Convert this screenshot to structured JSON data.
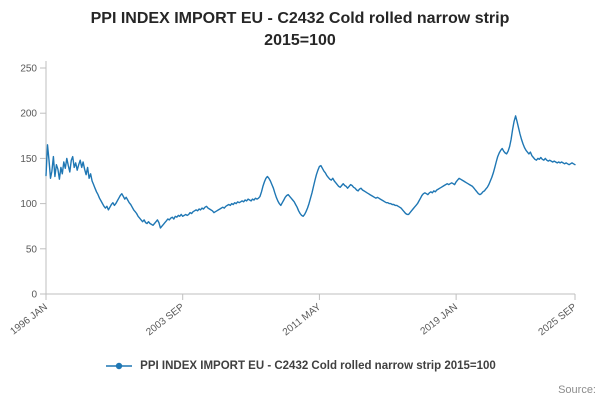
{
  "chart": {
    "title_line1": "PPI INDEX IMPORT EU - C2432 Cold rolled narrow strip",
    "title_line2": "2015=100",
    "legend": "PPI INDEX IMPORT EU - C2432 Cold rolled narrow strip 2015=100",
    "source": "Source:"
  },
  "colors": {
    "line": "#1f77b4",
    "axis": "#bfbfbf",
    "tick_text": "#595959"
  },
  "chart_data": {
    "type": "line",
    "title": "PPI INDEX IMPORT EU - C2432 Cold rolled narrow strip 2015=100",
    "xlabel": "",
    "ylabel": "",
    "grid": false,
    "legend_position": "bottom",
    "ylim": [
      0,
      250
    ],
    "y_ticks": [
      0,
      50,
      100,
      150,
      200,
      250
    ],
    "x_start": "1996 JAN",
    "x_end": "2025 SEP",
    "x_ticks": [
      {
        "label": "1996 JAN",
        "month": 0
      },
      {
        "label": "2003 SEP",
        "month": 92
      },
      {
        "label": "2011 MAY",
        "month": 184
      },
      {
        "label": "2019 JAN",
        "month": 276
      },
      {
        "label": "2025 SEP",
        "month": 356
      }
    ],
    "series": [
      {
        "name": "PPI INDEX IMPORT EU - C2432 Cold rolled narrow strip 2015=100",
        "frequency": "monthly",
        "values": [
          131,
          165,
          148,
          128,
          136,
          152,
          130,
          143,
          138,
          127,
          140,
          133,
          146,
          139,
          150,
          142,
          135,
          148,
          152,
          140,
          145,
          137,
          143,
          148,
          140,
          146,
          138,
          132,
          140,
          128,
          133,
          125,
          121,
          117,
          113,
          110,
          106,
          103,
          100,
          97,
          95,
          97,
          93,
          96,
          99,
          101,
          98,
          100,
          103,
          106,
          109,
          111,
          108,
          105,
          107,
          104,
          101,
          99,
          96,
          93,
          91,
          89,
          86,
          84,
          82,
          80,
          82,
          79,
          78,
          80,
          78,
          77,
          76,
          78,
          80,
          82,
          79,
          73,
          75,
          77,
          79,
          81,
          83,
          82,
          84,
          85,
          83,
          86,
          85,
          87,
          86,
          88,
          86,
          87,
          88,
          87,
          88,
          90,
          89,
          91,
          92,
          93,
          92,
          94,
          93,
          95,
          94,
          96,
          97,
          95,
          94,
          93,
          92,
          90,
          91,
          92,
          93,
          94,
          95,
          96,
          95,
          97,
          98,
          99,
          98,
          100,
          99,
          101,
          100,
          102,
          101,
          102,
          103,
          102,
          104,
          103,
          105,
          104,
          103,
          105,
          104,
          106,
          105,
          106,
          108,
          113,
          119,
          124,
          128,
          130,
          128,
          125,
          121,
          117,
          112,
          107,
          103,
          100,
          98,
          101,
          104,
          107,
          109,
          110,
          108,
          106,
          104,
          102,
          99,
          96,
          92,
          89,
          87,
          86,
          88,
          91,
          95,
          100,
          106,
          112,
          119,
          126,
          132,
          137,
          141,
          142,
          139,
          136,
          134,
          131,
          129,
          127,
          126,
          128,
          125,
          123,
          121,
          119,
          118,
          120,
          122,
          120,
          119,
          117,
          119,
          121,
          120,
          118,
          117,
          115,
          114,
          116,
          117,
          115,
          114,
          113,
          112,
          111,
          110,
          109,
          108,
          107,
          106,
          107,
          106,
          105,
          104,
          103,
          102,
          101,
          101,
          100,
          100,
          99,
          99,
          98,
          98,
          97,
          96,
          95,
          93,
          91,
          89,
          88,
          88,
          90,
          92,
          94,
          96,
          98,
          100,
          103,
          106,
          109,
          111,
          112,
          111,
          110,
          112,
          113,
          112,
          114,
          113,
          115,
          116,
          117,
          118,
          119,
          120,
          121,
          122,
          121,
          122,
          123,
          122,
          121,
          124,
          126,
          128,
          127,
          126,
          125,
          124,
          123,
          122,
          121,
          120,
          119,
          117,
          115,
          113,
          111,
          110,
          111,
          113,
          114,
          116,
          118,
          121,
          125,
          129,
          134,
          140,
          146,
          152,
          156,
          159,
          161,
          158,
          156,
          155,
          158,
          163,
          171,
          182,
          191,
          197,
          191,
          184,
          177,
          171,
          166,
          162,
          159,
          157,
          155,
          157,
          153,
          151,
          149,
          148,
          150,
          149,
          151,
          149,
          148,
          150,
          148,
          147,
          148,
          147,
          146,
          147,
          146,
          145,
          146,
          145,
          146,
          145,
          144,
          145,
          144,
          143,
          144,
          145,
          144,
          143
        ]
      }
    ]
  }
}
